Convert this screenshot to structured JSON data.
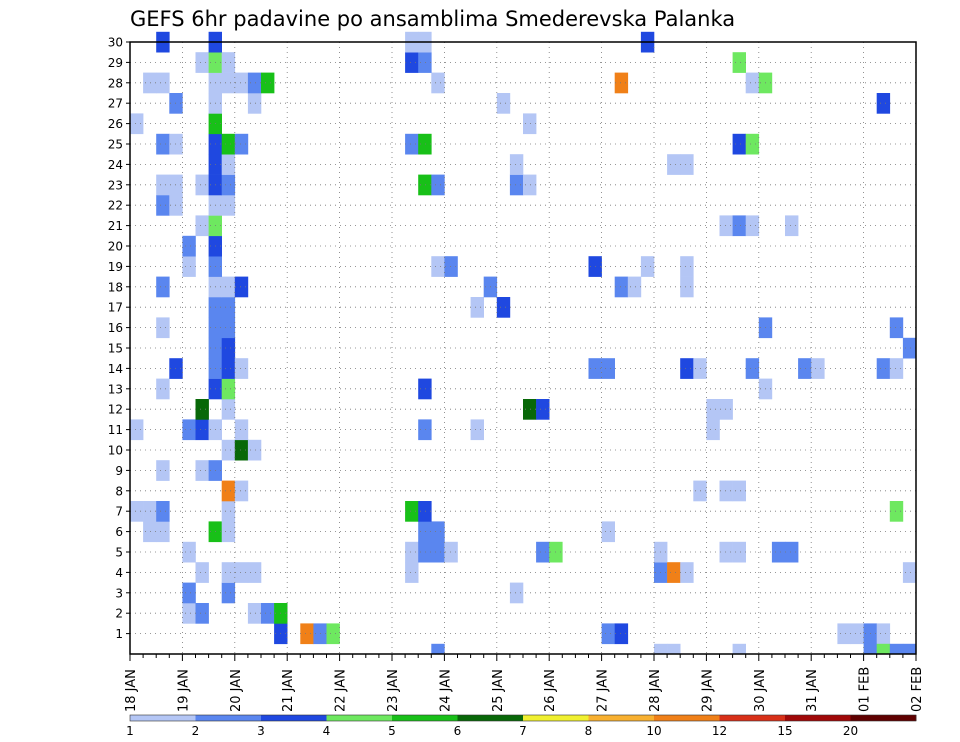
{
  "chart_data": {
    "type": "heatmap",
    "title": "GEFS 6hr padavine po ansamblima Smederevska Palanka",
    "y_categories": [
      "1",
      "2",
      "3",
      "4",
      "5",
      "6",
      "7",
      "8",
      "9",
      "10",
      "11",
      "12",
      "13",
      "14",
      "15",
      "16",
      "17",
      "18",
      "19",
      "20",
      "21",
      "22",
      "23",
      "24",
      "25",
      "26",
      "27",
      "28",
      "29",
      "30"
    ],
    "x_ticks": [
      "18 JAN",
      "19 JAN",
      "20 JAN",
      "21 JAN",
      "22 JAN",
      "23 JAN",
      "24 JAN",
      "25 JAN",
      "26 JAN",
      "27 JAN",
      "28 JAN",
      "29 JAN",
      "30 JAN",
      "31 JAN",
      "01 FEB",
      "02 FEB"
    ],
    "steps_per_day": 4,
    "total_steps": 60,
    "grid": "dotted",
    "colorbar": {
      "labels": [
        "1",
        "2",
        "3",
        "4",
        "5",
        "6",
        "7",
        "8",
        "10",
        "12",
        "15",
        "20"
      ],
      "colors": [
        "#b4c6f5",
        "#5a86ef",
        "#1f48e0",
        "#6ee860",
        "#18c018",
        "#086808",
        "#f0f030",
        "#f8b030",
        "#f08018",
        "#d83018",
        "#a00808",
        "#600000"
      ]
    },
    "cells": [
      [
        11,
        1,
        3
      ],
      [
        13,
        1,
        9
      ],
      [
        14,
        1,
        2
      ],
      [
        15,
        1,
        4
      ],
      [
        36,
        1,
        2
      ],
      [
        37,
        1,
        3
      ],
      [
        54,
        1,
        1
      ],
      [
        55,
        1,
        1
      ],
      [
        56,
        1,
        2
      ],
      [
        57,
        1,
        1
      ],
      [
        4,
        2,
        1
      ],
      [
        5,
        2,
        2
      ],
      [
        9,
        2,
        1
      ],
      [
        10,
        2,
        2
      ],
      [
        11,
        2,
        5
      ],
      [
        4,
        3,
        2
      ],
      [
        7,
        3,
        2
      ],
      [
        29,
        3,
        1
      ],
      [
        5,
        4,
        1
      ],
      [
        7,
        4,
        1
      ],
      [
        8,
        4,
        1
      ],
      [
        9,
        4,
        1
      ],
      [
        21,
        4,
        1
      ],
      [
        40,
        4,
        2
      ],
      [
        41,
        4,
        9
      ],
      [
        42,
        4,
        1
      ],
      [
        59,
        4,
        1
      ],
      [
        4,
        5,
        1
      ],
      [
        21,
        5,
        1
      ],
      [
        22,
        5,
        2
      ],
      [
        23,
        5,
        2
      ],
      [
        24,
        5,
        1
      ],
      [
        31,
        5,
        2
      ],
      [
        32,
        5,
        4
      ],
      [
        40,
        5,
        1
      ],
      [
        45,
        5,
        1
      ],
      [
        46,
        5,
        1
      ],
      [
        49,
        5,
        2
      ],
      [
        50,
        5,
        2
      ],
      [
        1,
        6,
        1
      ],
      [
        2,
        6,
        1
      ],
      [
        6,
        6,
        5
      ],
      [
        7,
        6,
        1
      ],
      [
        22,
        6,
        2
      ],
      [
        23,
        6,
        2
      ],
      [
        36,
        6,
        1
      ],
      [
        0,
        7,
        1
      ],
      [
        1,
        7,
        1
      ],
      [
        2,
        7,
        2
      ],
      [
        7,
        7,
        1
      ],
      [
        21,
        7,
        5
      ],
      [
        22,
        7,
        3
      ],
      [
        58,
        7,
        4
      ],
      [
        7,
        8,
        9
      ],
      [
        8,
        8,
        1
      ],
      [
        43,
        8,
        1
      ],
      [
        45,
        8,
        1
      ],
      [
        46,
        8,
        1
      ],
      [
        2,
        9,
        1
      ],
      [
        5,
        9,
        1
      ],
      [
        6,
        9,
        2
      ],
      [
        7,
        10,
        1
      ],
      [
        8,
        10,
        6
      ],
      [
        9,
        10,
        1
      ],
      [
        0,
        11,
        1
      ],
      [
        4,
        11,
        2
      ],
      [
        5,
        11,
        3
      ],
      [
        6,
        11,
        1
      ],
      [
        8,
        11,
        1
      ],
      [
        22,
        11,
        2
      ],
      [
        26,
        11,
        1
      ],
      [
        44,
        11,
        1
      ],
      [
        5,
        12,
        6
      ],
      [
        7,
        12,
        1
      ],
      [
        30,
        12,
        6
      ],
      [
        31,
        12,
        3
      ],
      [
        44,
        12,
        1
      ],
      [
        45,
        12,
        1
      ],
      [
        2,
        13,
        1
      ],
      [
        6,
        13,
        3
      ],
      [
        7,
        13,
        4
      ],
      [
        22,
        13,
        3
      ],
      [
        48,
        13,
        1
      ],
      [
        3,
        14,
        3
      ],
      [
        6,
        14,
        2
      ],
      [
        7,
        14,
        3
      ],
      [
        8,
        14,
        1
      ],
      [
        35,
        14,
        2
      ],
      [
        36,
        14,
        2
      ],
      [
        42,
        14,
        3
      ],
      [
        43,
        14,
        1
      ],
      [
        47,
        14,
        2
      ],
      [
        51,
        14,
        2
      ],
      [
        52,
        14,
        1
      ],
      [
        57,
        14,
        2
      ],
      [
        58,
        14,
        1
      ],
      [
        6,
        15,
        2
      ],
      [
        7,
        15,
        3
      ],
      [
        59,
        15,
        2
      ],
      [
        2,
        16,
        1
      ],
      [
        6,
        16,
        2
      ],
      [
        7,
        16,
        2
      ],
      [
        48,
        16,
        2
      ],
      [
        58,
        16,
        2
      ],
      [
        6,
        17,
        2
      ],
      [
        7,
        17,
        2
      ],
      [
        26,
        17,
        1
      ],
      [
        28,
        17,
        3
      ],
      [
        2,
        18,
        2
      ],
      [
        6,
        18,
        1
      ],
      [
        7,
        18,
        1
      ],
      [
        8,
        18,
        3
      ],
      [
        27,
        18,
        2
      ],
      [
        37,
        18,
        2
      ],
      [
        38,
        18,
        1
      ],
      [
        42,
        18,
        1
      ],
      [
        4,
        19,
        1
      ],
      [
        6,
        19,
        2
      ],
      [
        23,
        19,
        1
      ],
      [
        24,
        19,
        2
      ],
      [
        35,
        19,
        3
      ],
      [
        39,
        19,
        1
      ],
      [
        42,
        19,
        1
      ],
      [
        4,
        20,
        2
      ],
      [
        6,
        20,
        3
      ],
      [
        5,
        21,
        1
      ],
      [
        6,
        21,
        4
      ],
      [
        45,
        21,
        1
      ],
      [
        46,
        21,
        2
      ],
      [
        47,
        21,
        1
      ],
      [
        50,
        21,
        1
      ],
      [
        2,
        22,
        2
      ],
      [
        3,
        22,
        1
      ],
      [
        6,
        22,
        1
      ],
      [
        7,
        22,
        1
      ],
      [
        2,
        23,
        1
      ],
      [
        3,
        23,
        1
      ],
      [
        5,
        23,
        1
      ],
      [
        6,
        23,
        3
      ],
      [
        7,
        23,
        2
      ],
      [
        22,
        23,
        5
      ],
      [
        23,
        23,
        2
      ],
      [
        29,
        23,
        2
      ],
      [
        30,
        23,
        1
      ],
      [
        6,
        24,
        3
      ],
      [
        7,
        24,
        1
      ],
      [
        29,
        24,
        1
      ],
      [
        41,
        24,
        1
      ],
      [
        42,
        24,
        1
      ],
      [
        2,
        25,
        2
      ],
      [
        3,
        25,
        1
      ],
      [
        6,
        25,
        3
      ],
      [
        7,
        25,
        5
      ],
      [
        8,
        25,
        2
      ],
      [
        21,
        25,
        2
      ],
      [
        22,
        25,
        5
      ],
      [
        46,
        25,
        3
      ],
      [
        47,
        25,
        4
      ],
      [
        0,
        26,
        1
      ],
      [
        6,
        26,
        5
      ],
      [
        30,
        26,
        1
      ],
      [
        3,
        27,
        2
      ],
      [
        6,
        27,
        1
      ],
      [
        9,
        27,
        1
      ],
      [
        28,
        27,
        1
      ],
      [
        57,
        27,
        3
      ],
      [
        1,
        28,
        1
      ],
      [
        2,
        28,
        1
      ],
      [
        6,
        28,
        1
      ],
      [
        7,
        28,
        1
      ],
      [
        8,
        28,
        1
      ],
      [
        9,
        28,
        2
      ],
      [
        10,
        28,
        5
      ],
      [
        23,
        28,
        1
      ],
      [
        37,
        28,
        9
      ],
      [
        47,
        28,
        1
      ],
      [
        48,
        28,
        4
      ],
      [
        5,
        29,
        1
      ],
      [
        6,
        29,
        4
      ],
      [
        7,
        29,
        1
      ],
      [
        21,
        29,
        3
      ],
      [
        22,
        29,
        2
      ],
      [
        46,
        29,
        4
      ],
      [
        2,
        30,
        3
      ],
      [
        6,
        30,
        3
      ],
      [
        21,
        30,
        1
      ],
      [
        22,
        30,
        1
      ],
      [
        39,
        30,
        3
      ],
      [
        23,
        0,
        2
      ],
      [
        40,
        0,
        1
      ],
      [
        41,
        0,
        1
      ],
      [
        46,
        0,
        1
      ],
      [
        56,
        0,
        2
      ],
      [
        57,
        0,
        4
      ],
      [
        58,
        0,
        2
      ],
      [
        59,
        0,
        2
      ]
    ]
  }
}
